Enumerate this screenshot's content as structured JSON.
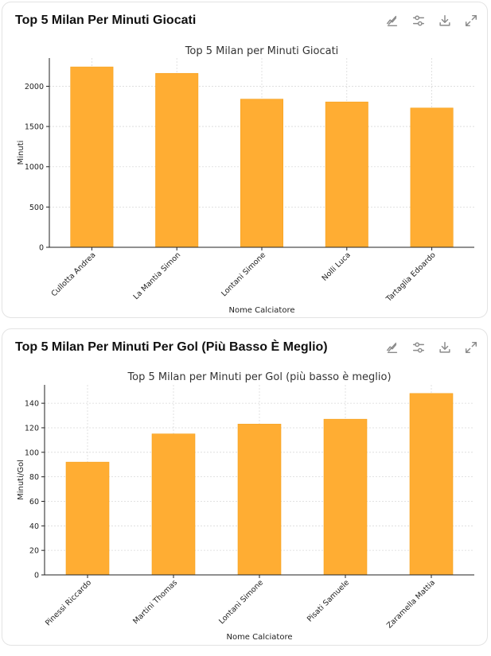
{
  "colors": {
    "bar": "#ffad33",
    "bar_edge": "#f5a21f",
    "grid": "#d9d9d9",
    "axis": "#222222",
    "icon": "#8a8a8a"
  },
  "icons": [
    "chart-toggle-icon",
    "sliders-icon",
    "download-icon",
    "expand-icon"
  ],
  "cards": [
    {
      "title": "Top 5 Milan Per Minuti Giocati",
      "chart_data": {
        "type": "bar",
        "title": "Top 5 Milan per Minuti Giocati",
        "xlabel": "Nome Calciatore",
        "ylabel": "Minuti",
        "categories": [
          "Cullotta Andrea",
          "La Mantia Simon",
          "Lontani Simone",
          "Nolli Luca",
          "Tartaglia Edoardo"
        ],
        "values": [
          2240,
          2160,
          1840,
          1805,
          1730
        ],
        "ylim": [
          0,
          2350
        ],
        "yticks": [
          0,
          500,
          1000,
          1500,
          2000
        ],
        "grid": true
      }
    },
    {
      "title": "Top 5 Milan Per Minuti Per Gol (Più Basso È Meglio)",
      "chart_data": {
        "type": "bar",
        "title": "Top 5 Milan per Minuti per Gol (più basso è meglio)",
        "xlabel": "Nome Calciatore",
        "ylabel": "Minuti/Gol",
        "categories": [
          "Pinessi Riccardo",
          "Martini Thomas",
          "Lontani Simone",
          "Pisati Samuele",
          "Zaramella Mattia"
        ],
        "values": [
          92,
          115,
          123,
          127,
          148
        ],
        "ylim": [
          0,
          155
        ],
        "yticks": [
          0,
          20,
          40,
          60,
          80,
          100,
          120,
          140
        ],
        "grid": true
      }
    }
  ]
}
